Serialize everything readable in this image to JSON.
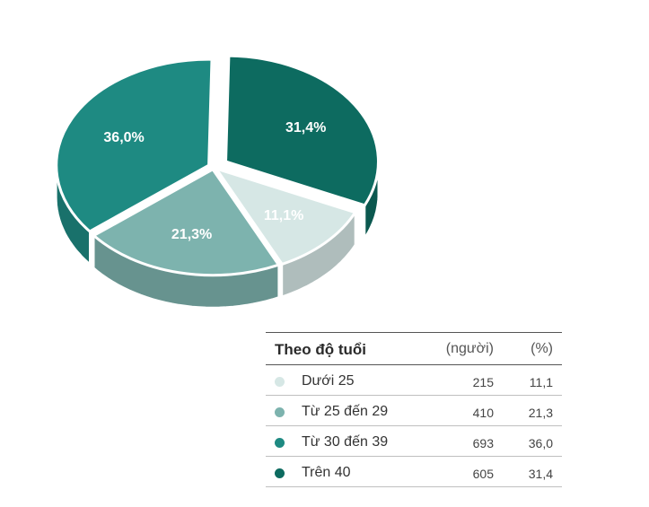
{
  "chart_data": {
    "type": "pie",
    "slices": [
      {
        "label": "Dưới 25",
        "count": 215,
        "pct": 11.1,
        "pct_label": "11,1%",
        "pct_text": "11,1",
        "color": "#d6e7e5",
        "label_color": "#ffffff"
      },
      {
        "label": "Từ 25 đến 29",
        "count": 410,
        "pct": 21.3,
        "pct_label": "21,3%",
        "pct_text": "21,3",
        "color": "#7db3ae",
        "label_color": "#ffffff"
      },
      {
        "label": "Từ 30 đến 39",
        "count": 693,
        "pct": 36.0,
        "pct_label": "36,0%",
        "pct_text": "36,0",
        "color": "#1e8a82",
        "label_color": "#ffffff"
      },
      {
        "label": "Trên 40",
        "count": 605,
        "pct": 31.4,
        "pct_label": "31,4%",
        "pct_text": "31,4",
        "color": "#0d6b60",
        "label_color": "#ffffff"
      }
    ]
  },
  "legend": {
    "title": "Theo độ tuổi",
    "unit_count": "(người)",
    "unit_pct": "(%)"
  }
}
